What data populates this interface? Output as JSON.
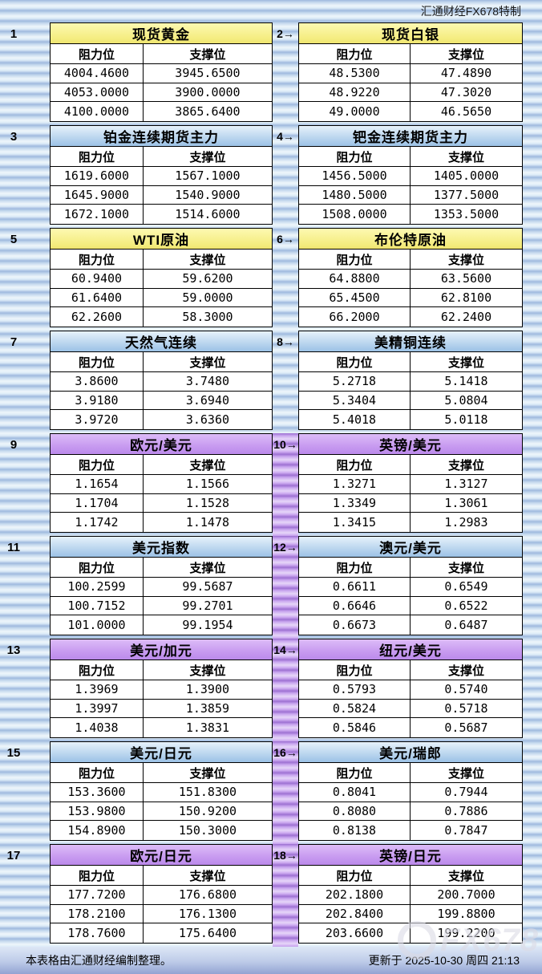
{
  "brand": "汇通财经FX678特制",
  "labels": {
    "resistance": "阻力位",
    "support": "支撑位"
  },
  "footer": {
    "left": "本表格由汇通财经编制整理。",
    "right": "更新于 2025-10-30 周四 21:13"
  },
  "watermark": "FX678",
  "colors": {
    "header_yellow": "#f4ec7e",
    "header_blue": "#bdd7ef",
    "header_purple": "#c89bf0",
    "stripe_blue": "#a3bce0",
    "stripe_purple": "#c9a6ef",
    "footer_bar": "#bdcbe8"
  },
  "blocks": [
    {
      "label": "1",
      "title": "现货黄金",
      "theme": "yellow",
      "rows": [
        [
          "4004.4600",
          "3945.6500"
        ],
        [
          "4053.0000",
          "3900.0000"
        ],
        [
          "4100.0000",
          "3865.6400"
        ]
      ]
    },
    {
      "label": "2→",
      "title": "现货白银",
      "theme": "yellow",
      "rows": [
        [
          "48.5300",
          "47.4890"
        ],
        [
          "48.9220",
          "47.3020"
        ],
        [
          "49.0000",
          "46.5650"
        ]
      ]
    },
    {
      "label": "3",
      "title": "铂金连续期货主力",
      "theme": "blue",
      "rows": [
        [
          "1619.6000",
          "1567.1000"
        ],
        [
          "1645.9000",
          "1540.9000"
        ],
        [
          "1672.1000",
          "1514.6000"
        ]
      ]
    },
    {
      "label": "4→",
      "title": "钯金连续期货主力",
      "theme": "blue",
      "rows": [
        [
          "1456.5000",
          "1405.0000"
        ],
        [
          "1480.5000",
          "1377.5000"
        ],
        [
          "1508.0000",
          "1353.5000"
        ]
      ]
    },
    {
      "label": "5",
      "title": "WTI原油",
      "theme": "yellow",
      "rows": [
        [
          "60.9400",
          "59.6200"
        ],
        [
          "61.6400",
          "59.0000"
        ],
        [
          "62.2600",
          "58.3000"
        ]
      ]
    },
    {
      "label": "6→",
      "title": "布伦特原油",
      "theme": "yellow",
      "rows": [
        [
          "64.8800",
          "63.5600"
        ],
        [
          "65.4500",
          "62.8100"
        ],
        [
          "66.2000",
          "62.2400"
        ]
      ]
    },
    {
      "label": "7",
      "title": "天然气连续",
      "theme": "blue",
      "rows": [
        [
          "3.8600",
          "3.7480"
        ],
        [
          "3.9180",
          "3.6940"
        ],
        [
          "3.9720",
          "3.6360"
        ]
      ]
    },
    {
      "label": "8→",
      "title": "美精铜连续",
      "theme": "blue",
      "rows": [
        [
          "5.2718",
          "5.1418"
        ],
        [
          "5.3404",
          "5.0804"
        ],
        [
          "5.4018",
          "5.0118"
        ]
      ]
    },
    {
      "label": "9",
      "title": "欧元/美元",
      "theme": "purple",
      "rows": [
        [
          "1.1654",
          "1.1566"
        ],
        [
          "1.1704",
          "1.1528"
        ],
        [
          "1.1742",
          "1.1478"
        ]
      ]
    },
    {
      "label": "10→",
      "title": "英镑/美元",
      "theme": "purple",
      "rows": [
        [
          "1.3271",
          "1.3127"
        ],
        [
          "1.3349",
          "1.3061"
        ],
        [
          "1.3415",
          "1.2983"
        ]
      ]
    },
    {
      "label": "11",
      "title": "美元指数",
      "theme": "blue",
      "rows": [
        [
          "100.2599",
          "99.5687"
        ],
        [
          "100.7152",
          "99.2701"
        ],
        [
          "101.0000",
          "99.1954"
        ]
      ]
    },
    {
      "label": "12→",
      "title": "澳元/美元",
      "theme": "blue",
      "rows": [
        [
          "0.6611",
          "0.6549"
        ],
        [
          "0.6646",
          "0.6522"
        ],
        [
          "0.6673",
          "0.6487"
        ]
      ]
    },
    {
      "label": "13",
      "title": "美元/加元",
      "theme": "purple",
      "rows": [
        [
          "1.3969",
          "1.3900"
        ],
        [
          "1.3997",
          "1.3859"
        ],
        [
          "1.4038",
          "1.3831"
        ]
      ]
    },
    {
      "label": "14→",
      "title": "纽元/美元",
      "theme": "purple",
      "rows": [
        [
          "0.5793",
          "0.5740"
        ],
        [
          "0.5824",
          "0.5718"
        ],
        [
          "0.5846",
          "0.5687"
        ]
      ]
    },
    {
      "label": "15",
      "title": "美元/日元",
      "theme": "blue",
      "rows": [
        [
          "153.3600",
          "151.8300"
        ],
        [
          "153.9800",
          "150.9200"
        ],
        [
          "154.8900",
          "150.3000"
        ]
      ]
    },
    {
      "label": "16→",
      "title": "美元/瑞郎",
      "theme": "blue",
      "rows": [
        [
          "0.8041",
          "0.7944"
        ],
        [
          "0.8080",
          "0.7886"
        ],
        [
          "0.8138",
          "0.7847"
        ]
      ]
    },
    {
      "label": "17",
      "title": "欧元/日元",
      "theme": "purple",
      "rows": [
        [
          "177.7200",
          "176.6800"
        ],
        [
          "178.2100",
          "176.1300"
        ],
        [
          "178.7600",
          "175.6400"
        ]
      ]
    },
    {
      "label": "18→",
      "title": "英镑/日元",
      "theme": "purple",
      "rows": [
        [
          "202.1800",
          "200.7000"
        ],
        [
          "202.8400",
          "199.8800"
        ],
        [
          "203.6600",
          "199.2200"
        ]
      ]
    }
  ],
  "chart_data": {
    "type": "table",
    "title": "汇通财经FX678特制 支撑/阻力位表",
    "columns": [
      "阻力位",
      "支撑位"
    ],
    "instruments": [
      {
        "name": "现货黄金",
        "resistance": [
          4004.46,
          4053.0,
          4100.0
        ],
        "support": [
          3945.65,
          3900.0,
          3865.64
        ]
      },
      {
        "name": "现货白银",
        "resistance": [
          48.53,
          48.922,
          49.0
        ],
        "support": [
          47.489,
          47.302,
          46.565
        ]
      },
      {
        "name": "铂金连续期货主力",
        "resistance": [
          1619.6,
          1645.9,
          1672.1
        ],
        "support": [
          1567.1,
          1540.9,
          1514.6
        ]
      },
      {
        "name": "钯金连续期货主力",
        "resistance": [
          1456.5,
          1480.5,
          1508.0
        ],
        "support": [
          1405.0,
          1377.5,
          1353.5
        ]
      },
      {
        "name": "WTI原油",
        "resistance": [
          60.94,
          61.64,
          62.26
        ],
        "support": [
          59.62,
          59.0,
          58.3
        ]
      },
      {
        "name": "布伦特原油",
        "resistance": [
          64.88,
          65.45,
          66.2
        ],
        "support": [
          63.56,
          62.81,
          62.24
        ]
      },
      {
        "name": "天然气连续",
        "resistance": [
          3.86,
          3.918,
          3.972
        ],
        "support": [
          3.748,
          3.694,
          3.636
        ]
      },
      {
        "name": "美精铜连续",
        "resistance": [
          5.2718,
          5.3404,
          5.4018
        ],
        "support": [
          5.1418,
          5.0804,
          5.0118
        ]
      },
      {
        "name": "欧元/美元",
        "resistance": [
          1.1654,
          1.1704,
          1.1742
        ],
        "support": [
          1.1566,
          1.1528,
          1.1478
        ]
      },
      {
        "name": "英镑/美元",
        "resistance": [
          1.3271,
          1.3349,
          1.3415
        ],
        "support": [
          1.3127,
          1.3061,
          1.2983
        ]
      },
      {
        "name": "美元指数",
        "resistance": [
          100.2599,
          100.7152,
          101.0
        ],
        "support": [
          99.5687,
          99.2701,
          99.1954
        ]
      },
      {
        "name": "澳元/美元",
        "resistance": [
          0.6611,
          0.6646,
          0.6673
        ],
        "support": [
          0.6549,
          0.6522,
          0.6487
        ]
      },
      {
        "name": "美元/加元",
        "resistance": [
          1.3969,
          1.3997,
          1.4038
        ],
        "support": [
          1.39,
          1.3859,
          1.3831
        ]
      },
      {
        "name": "纽元/美元",
        "resistance": [
          0.5793,
          0.5824,
          0.5846
        ],
        "support": [
          0.574,
          0.5718,
          0.5687
        ]
      },
      {
        "name": "美元/日元",
        "resistance": [
          153.36,
          153.98,
          154.89
        ],
        "support": [
          151.83,
          150.92,
          150.3
        ]
      },
      {
        "name": "美元/瑞郎",
        "resistance": [
          0.8041,
          0.808,
          0.8138
        ],
        "support": [
          0.7944,
          0.7886,
          0.7847
        ]
      },
      {
        "name": "欧元/日元",
        "resistance": [
          177.72,
          178.21,
          178.76
        ],
        "support": [
          176.68,
          176.13,
          175.64
        ]
      },
      {
        "name": "英镑/日元",
        "resistance": [
          202.18,
          202.84,
          203.66
        ],
        "support": [
          200.7,
          199.88,
          199.22
        ]
      }
    ]
  }
}
